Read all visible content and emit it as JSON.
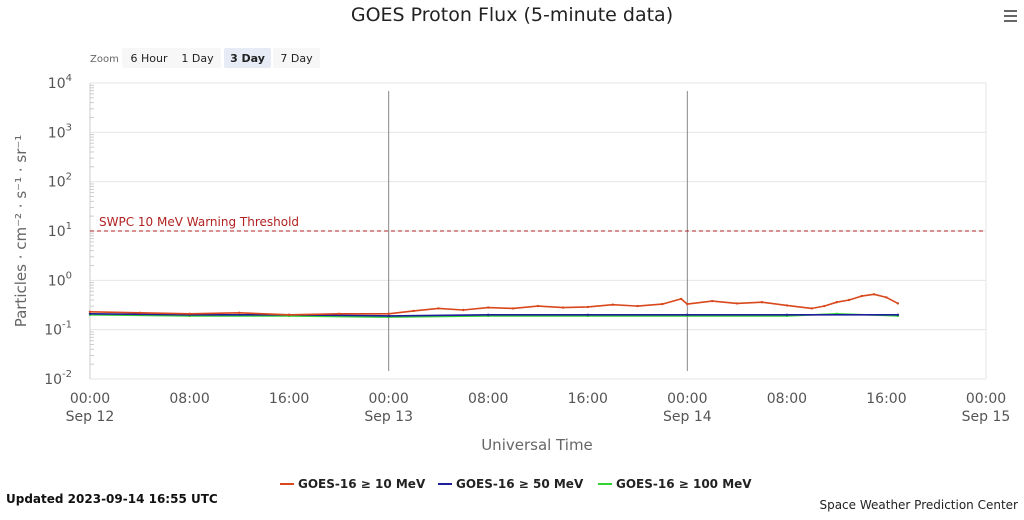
{
  "title": "GOES Proton Flux (5-minute data)",
  "zoom": {
    "label": "Zoom",
    "buttons": [
      {
        "label": "6 Hour",
        "active": false
      },
      {
        "label": "1 Day",
        "active": false
      },
      {
        "label": "3 Day",
        "active": true
      },
      {
        "label": "7 Day",
        "active": false
      }
    ]
  },
  "menu_icon": "hamburger-menu-icon",
  "updated": "Updated 2023-09-14 16:55 UTC",
  "credit": "Space Weather Prediction Center",
  "colors": {
    "series_10": "#d9481c",
    "series_50": "#1f1f9c",
    "series_100": "#34d434",
    "threshold": "#b22222",
    "grid": "#e6e6e6",
    "day_line": "#888888"
  },
  "chart_data": {
    "type": "line",
    "title": "GOES Proton Flux (5-minute data)",
    "xlabel": "Universal Time",
    "ylabel": "Particles · cm⁻² · s⁻¹ · sr⁻¹",
    "y_scale": "log",
    "ylim": [
      0.01,
      10000
    ],
    "y_ticks": [
      {
        "base": "10",
        "exp": "-2"
      },
      {
        "base": "10",
        "exp": "-1"
      },
      {
        "base": "10",
        "exp": "0"
      },
      {
        "base": "10",
        "exp": "1"
      },
      {
        "base": "10",
        "exp": "2"
      },
      {
        "base": "10",
        "exp": "3"
      },
      {
        "base": "10",
        "exp": "4"
      }
    ],
    "xlim": [
      "2023-09-12 00:00",
      "2023-09-15 00:00"
    ],
    "x_ticks": [
      {
        "time": "00:00",
        "date": "Sep 12"
      },
      {
        "time": "08:00",
        "date": ""
      },
      {
        "time": "16:00",
        "date": ""
      },
      {
        "time": "00:00",
        "date": "Sep 13"
      },
      {
        "time": "08:00",
        "date": ""
      },
      {
        "time": "16:00",
        "date": ""
      },
      {
        "time": "00:00",
        "date": "Sep 14"
      },
      {
        "time": "08:00",
        "date": ""
      },
      {
        "time": "16:00",
        "date": ""
      },
      {
        "time": "00:00",
        "date": "Sep 15"
      }
    ],
    "threshold": {
      "label": "SWPC 10 MeV Warning Threshold",
      "value": 10
    },
    "grid": true,
    "legend_position": "bottom",
    "series": [
      {
        "name": "GOES-16 ≥ 10 MeV",
        "x": [
          "2023-09-12 00:00",
          "2023-09-12 04:00",
          "2023-09-12 08:00",
          "2023-09-12 12:00",
          "2023-09-12 16:00",
          "2023-09-12 20:00",
          "2023-09-13 00:00",
          "2023-09-13 02:00",
          "2023-09-13 04:00",
          "2023-09-13 06:00",
          "2023-09-13 08:00",
          "2023-09-13 10:00",
          "2023-09-13 12:00",
          "2023-09-13 14:00",
          "2023-09-13 16:00",
          "2023-09-13 18:00",
          "2023-09-13 20:00",
          "2023-09-13 22:00",
          "2023-09-13 23:30",
          "2023-09-14 00:00",
          "2023-09-14 02:00",
          "2023-09-14 04:00",
          "2023-09-14 06:00",
          "2023-09-14 08:00",
          "2023-09-14 10:00",
          "2023-09-14 11:00",
          "2023-09-14 12:00",
          "2023-09-14 13:00",
          "2023-09-14 14:00",
          "2023-09-14 15:00",
          "2023-09-14 16:00",
          "2023-09-14 16:55"
        ],
        "values": [
          0.23,
          0.22,
          0.21,
          0.22,
          0.2,
          0.21,
          0.21,
          0.24,
          0.27,
          0.25,
          0.28,
          0.27,
          0.3,
          0.28,
          0.29,
          0.32,
          0.3,
          0.33,
          0.42,
          0.33,
          0.38,
          0.34,
          0.36,
          0.31,
          0.27,
          0.3,
          0.36,
          0.4,
          0.48,
          0.52,
          0.45,
          0.34
        ]
      },
      {
        "name": "GOES-16 ≥ 50 MeV",
        "x": [
          "2023-09-12 00:00",
          "2023-09-12 08:00",
          "2023-09-12 16:00",
          "2023-09-13 00:00",
          "2023-09-13 08:00",
          "2023-09-13 16:00",
          "2023-09-14 00:00",
          "2023-09-14 08:00",
          "2023-09-14 16:55"
        ],
        "values": [
          0.21,
          0.2,
          0.2,
          0.19,
          0.2,
          0.2,
          0.2,
          0.2,
          0.2
        ]
      },
      {
        "name": "GOES-16 ≥ 100 MeV",
        "x": [
          "2023-09-12 00:00",
          "2023-09-12 08:00",
          "2023-09-12 16:00",
          "2023-09-13 00:00",
          "2023-09-13 08:00",
          "2023-09-13 16:00",
          "2023-09-14 00:00",
          "2023-09-14 08:00",
          "2023-09-14 12:00",
          "2023-09-14 16:55"
        ],
        "values": [
          0.2,
          0.19,
          0.19,
          0.18,
          0.19,
          0.19,
          0.19,
          0.19,
          0.21,
          0.19
        ]
      }
    ]
  }
}
